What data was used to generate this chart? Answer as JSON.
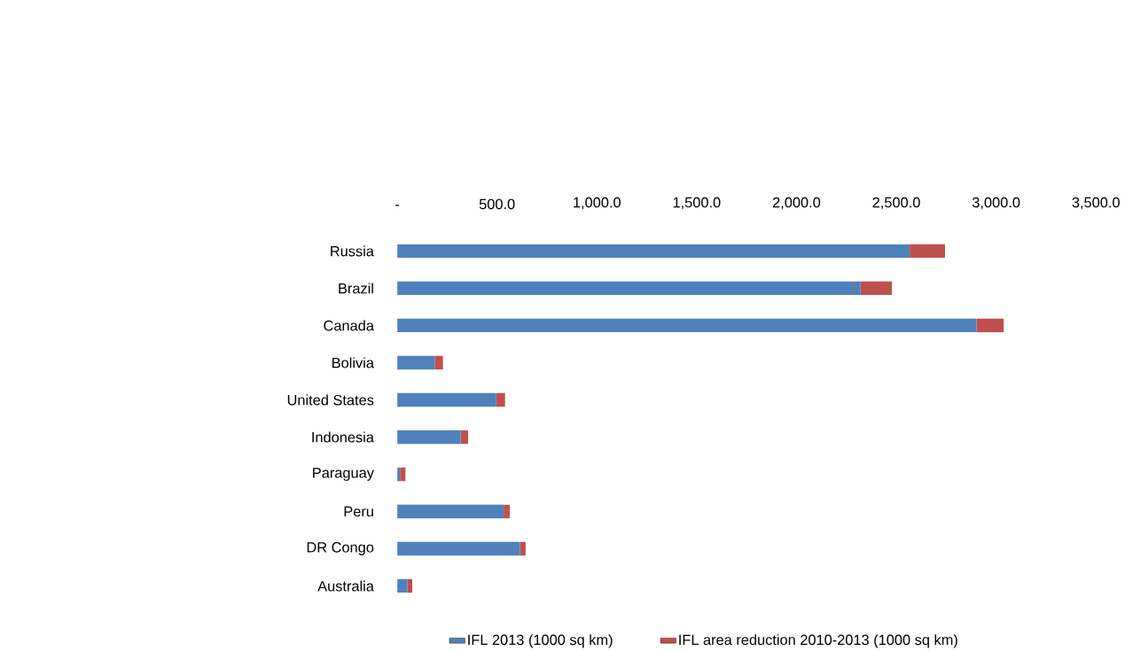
{
  "chart_data": {
    "type": "bar",
    "orientation": "horizontal",
    "stacked": true,
    "categories": [
      "Russia",
      "Brazil",
      "Canada",
      "Bolivia",
      "United States",
      "Indonesia",
      "Paraguay",
      "Peru",
      "DR Congo",
      "Australia"
    ],
    "series": [
      {
        "name": "IFL 2013 (1000 sq km)",
        "color": "#4f81bd",
        "values": [
          2567,
          2321,
          2902,
          188,
          496,
          318,
          14,
          533,
          615,
          51
        ]
      },
      {
        "name": "IFL area reduction 2010-2013 (1000 sq km)",
        "color": "#c0504d",
        "values": [
          177,
          157,
          136,
          41,
          44,
          37,
          27,
          31,
          28,
          24
        ]
      }
    ],
    "xlim": [
      0,
      3500
    ],
    "xticks": [
      {
        "value": 0,
        "label": "-"
      },
      {
        "value": 500,
        "label": "500.0"
      },
      {
        "value": 1000,
        "label": "1,000.0"
      },
      {
        "value": 1500,
        "label": "1,500.0"
      },
      {
        "value": 2000,
        "label": "2,000.0"
      },
      {
        "value": 2500,
        "label": "2,500.0"
      },
      {
        "value": 3000,
        "label": "3,000.0"
      },
      {
        "value": 3500,
        "label": "3,500.0"
      }
    ],
    "legend": "bottom"
  }
}
